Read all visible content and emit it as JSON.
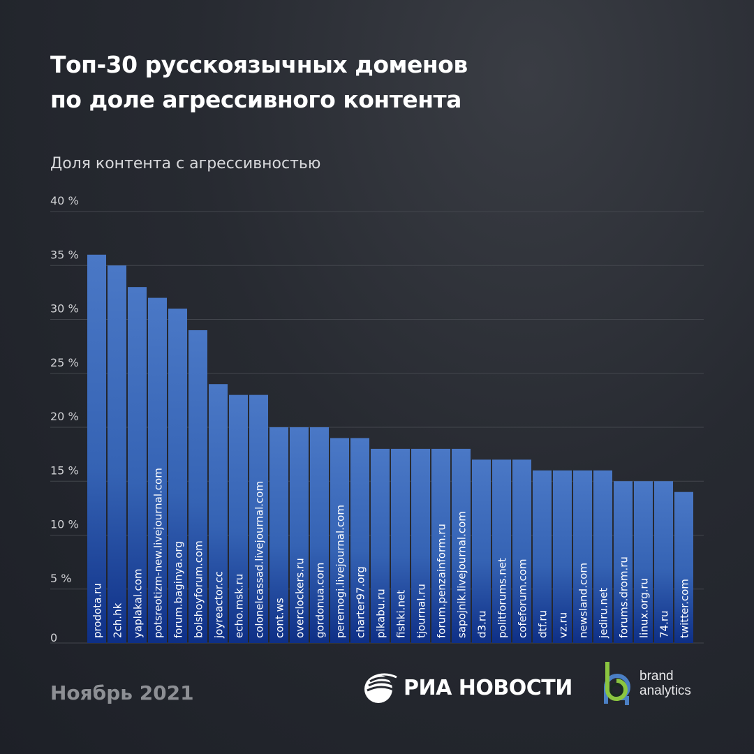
{
  "title_line1": "Топ-30 русскоязычных доменов",
  "title_line2": "по доле агрессивного контента",
  "footer": {
    "date": "Ноябрь 2021",
    "logo_ria": "РИА НОВОСТИ",
    "logo_ba_line1": "brand",
    "logo_ba_line2": "analytics"
  },
  "colors": {
    "bar_top": "#4a78c6",
    "bar_bottom": "#0e2f86",
    "background": "#262930",
    "grid": "#43464d"
  },
  "chart_data": {
    "type": "bar",
    "ylabel": "Доля контента с агрессивностью",
    "ylim": [
      0,
      40
    ],
    "yticks": [
      0,
      5,
      10,
      15,
      20,
      25,
      30,
      35,
      40
    ],
    "ytick_labels": [
      "0",
      "5 %",
      "10 %",
      "15 %",
      "20 %",
      "25 %",
      "30 %",
      "35 %",
      "40 %"
    ],
    "grid": true,
    "categories": [
      "prodota.ru",
      "2ch.hk",
      "yaplakal.com",
      "potsreotizm-new.livejournal.com",
      "forum.baginya.org",
      "bolshoyforum.com",
      "joyreactor.cc",
      "echo.msk.ru",
      "colonelcassad.livejournal.com",
      "cont.ws",
      "overclockers.ru",
      "gordonua.com",
      "peremogi.livejournal.com",
      "charter97.org",
      "pikabu.ru",
      "fishki.net",
      "tjournal.ru",
      "forum.penzainform.ru",
      "sapojnik.livejournal.com",
      "d3.ru",
      "politforums.net",
      "cofeforum.com",
      "dtf.ru",
      "vz.ru",
      "newsland.com",
      "jediru.net",
      "forums.drom.ru",
      "linux.org.ru",
      "74.ru",
      "twitter.com"
    ],
    "values": [
      36,
      35,
      33,
      32,
      31,
      29,
      24,
      23,
      23,
      20,
      20,
      20,
      19,
      19,
      18,
      18,
      18,
      18,
      18,
      17,
      17,
      17,
      16,
      16,
      16,
      16,
      15,
      15,
      15,
      14
    ]
  }
}
